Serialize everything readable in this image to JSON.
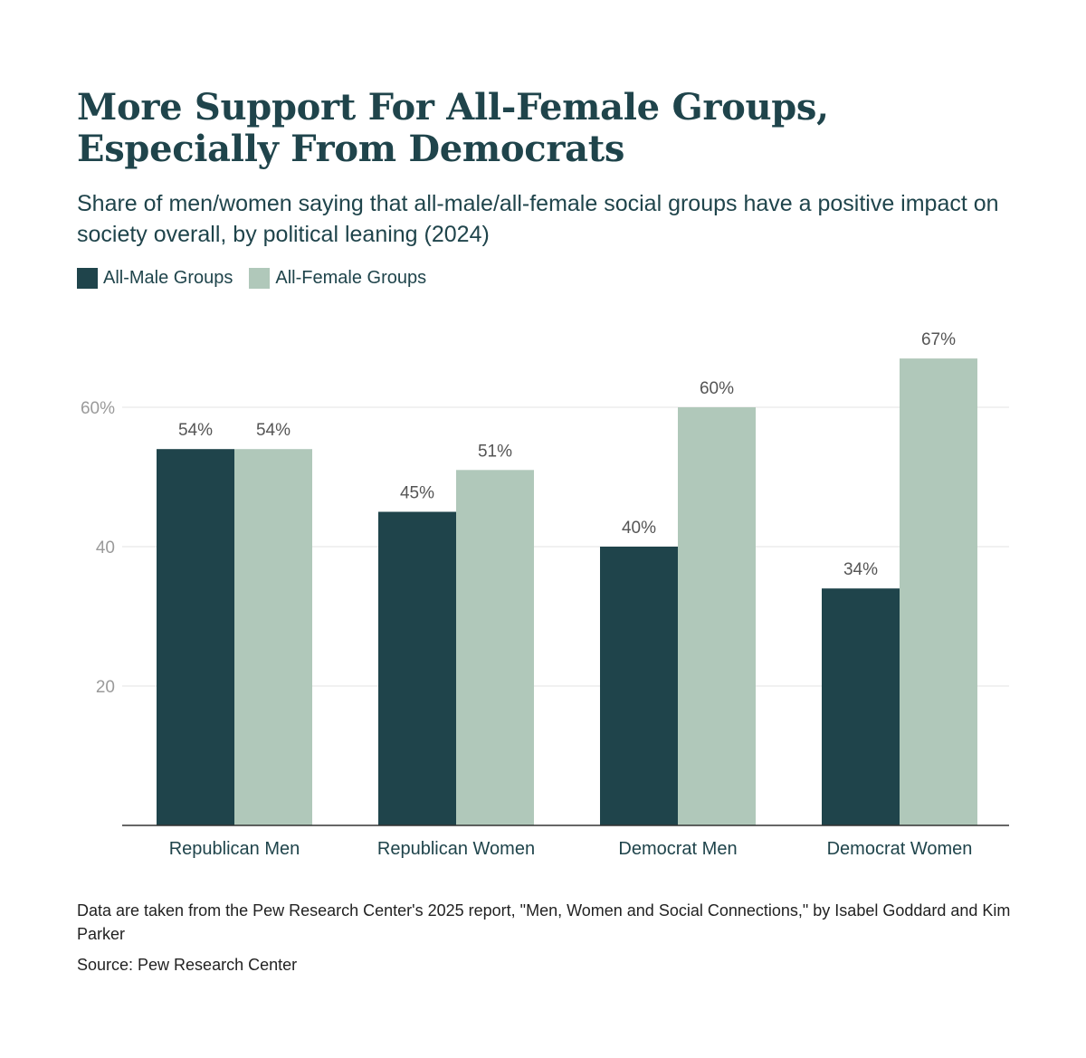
{
  "header": {
    "title": "More Support For All-Female Groups, Especially From Democrats",
    "subtitle": "Share of men/women saying that all-male/all-female social groups have a positive impact on society overall, by political leaning (2024)"
  },
  "legend": [
    {
      "label": "All-Male Groups",
      "color": "#1f444b"
    },
    {
      "label": "All-Female Groups",
      "color": "#b0c8ba"
    }
  ],
  "chart_data": {
    "type": "bar",
    "title": "More Support For All-Female Groups, Especially From Democrats",
    "xlabel": "",
    "ylabel": "",
    "ylim": [
      0,
      70
    ],
    "yticks": [
      20,
      40,
      60
    ],
    "ytick_labels": [
      "20",
      "40",
      "60%"
    ],
    "grid": true,
    "legend_position": "top-left",
    "categories": [
      "Republican Men",
      "Republican Women",
      "Democrat Men",
      "Democrat Women"
    ],
    "series": [
      {
        "name": "All-Male Groups",
        "color": "#1f444b",
        "values": [
          54,
          45,
          40,
          34
        ],
        "labels": [
          "54%",
          "45%",
          "40%",
          "34%"
        ]
      },
      {
        "name": "All-Female Groups",
        "color": "#b0c8ba",
        "values": [
          54,
          51,
          60,
          67
        ],
        "labels": [
          "54%",
          "51%",
          "60%",
          "67%"
        ]
      }
    ]
  },
  "footer": {
    "note": "Data are taken from the Pew Research Center's 2025 report, \"Men, Women and Social Connections,\" by Isabel Goddard and Kim Parker",
    "source": "Source: Pew Research Center"
  }
}
